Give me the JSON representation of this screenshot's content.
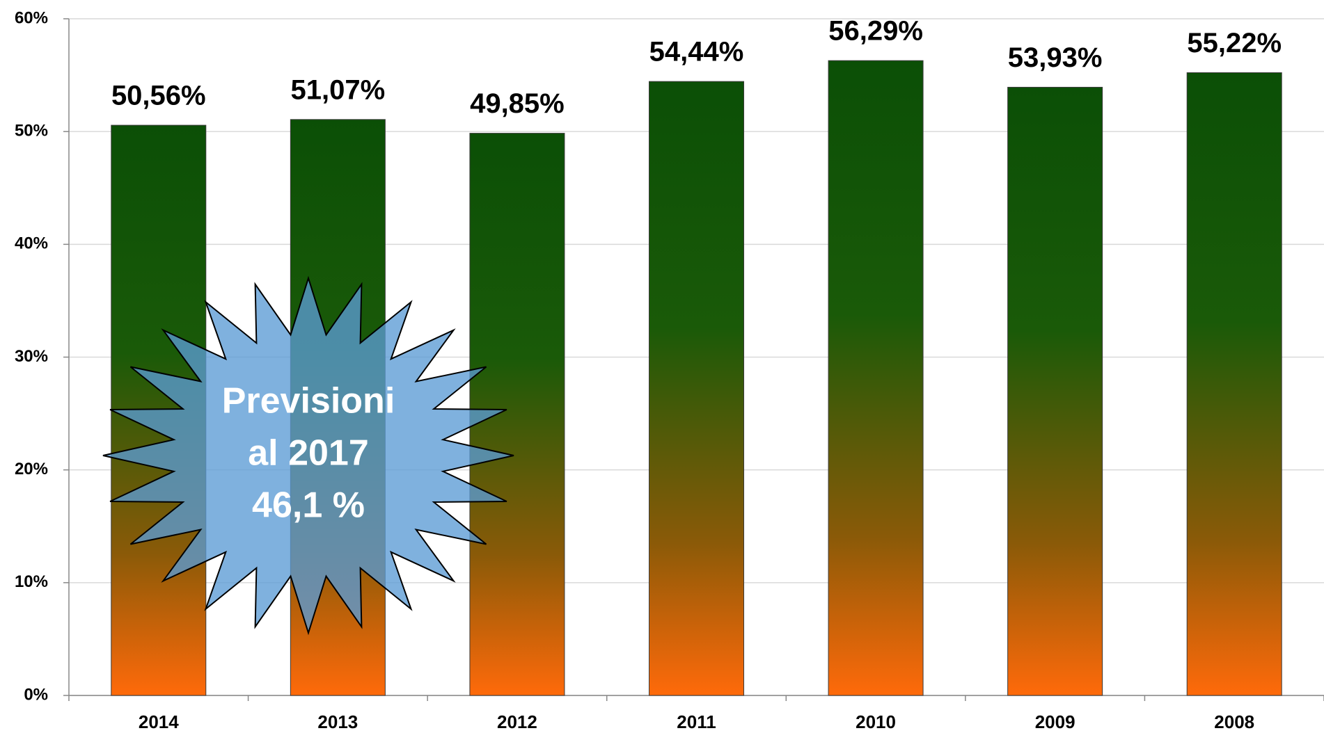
{
  "chart_data": {
    "type": "bar",
    "categories": [
      "2014",
      "2013",
      "2012",
      "2011",
      "2010",
      "2009",
      "2008"
    ],
    "values": [
      50.56,
      51.07,
      49.85,
      54.44,
      56.29,
      53.93,
      55.22
    ],
    "value_labels": [
      "50,56%",
      "51,07%",
      "49,85%",
      "54,44%",
      "56,29%",
      "53,93%",
      "55,22%"
    ],
    "ylim": [
      0,
      60
    ],
    "yticks": [
      {
        "value": 0,
        "label": "0%"
      },
      {
        "value": 10,
        "label": "10%"
      },
      {
        "value": 20,
        "label": "20%"
      },
      {
        "value": 30,
        "label": "30%"
      },
      {
        "value": 40,
        "label": "40%"
      },
      {
        "value": 50,
        "label": "50%"
      },
      {
        "value": 60,
        "label": "60%"
      }
    ],
    "grid": true,
    "annotation": [
      "Previsioni",
      "al 2017",
      "46,1 %"
    ]
  }
}
